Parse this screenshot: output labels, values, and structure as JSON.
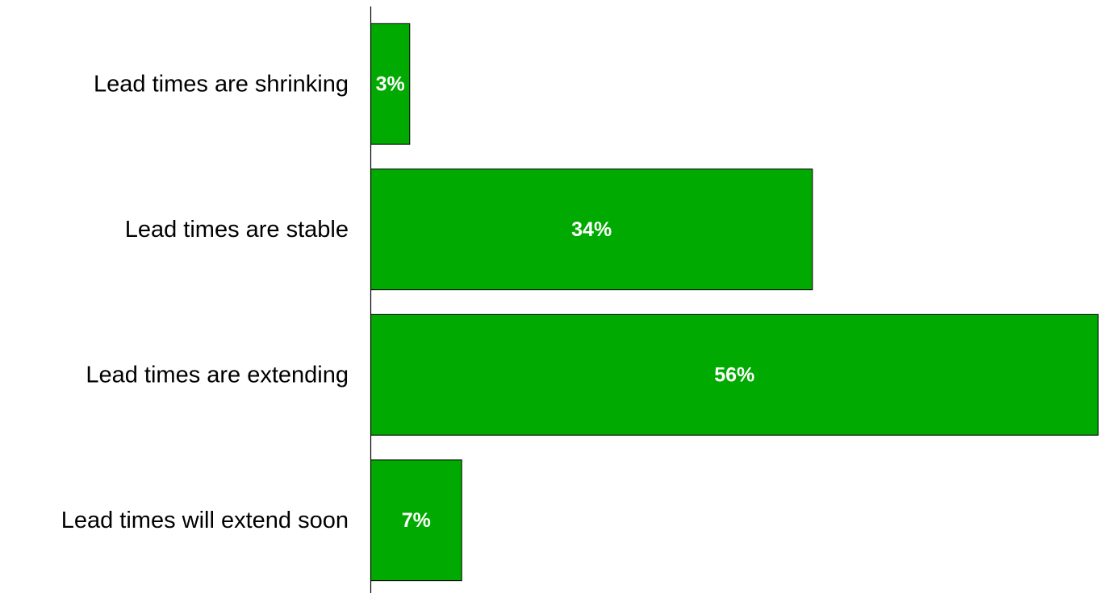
{
  "chart_data": {
    "type": "bar",
    "orientation": "horizontal",
    "title": "",
    "xlabel": "",
    "ylabel": "",
    "categories": [
      "Lead times are shrinking",
      "Lead times are stable",
      "Lead times are extending",
      "Lead times will extend soon"
    ],
    "values": [
      3,
      34,
      56,
      7
    ],
    "value_labels": [
      "3%",
      "34%",
      "56%",
      "7%"
    ],
    "xlim": [
      0,
      56
    ],
    "grid": false,
    "legend": "none",
    "bar_color": "#00AA00",
    "bar_edge_color": "#000000",
    "value_label_color": "#ffffff"
  }
}
